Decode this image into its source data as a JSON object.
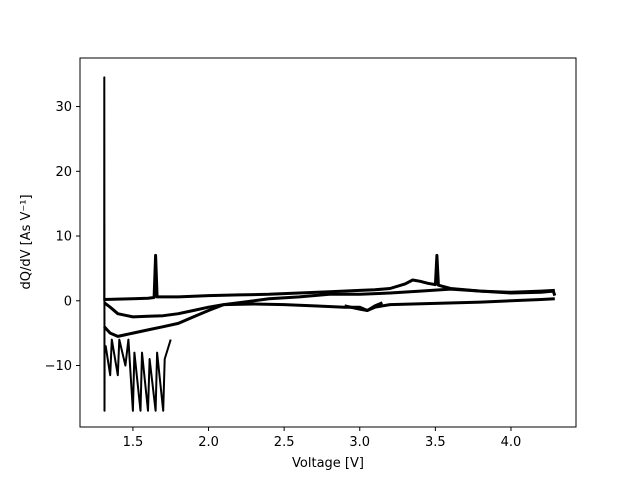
{
  "chart_data": {
    "type": "line",
    "title": "",
    "xlabel": "Voltage [V]",
    "ylabel": "dQ/dV [As V⁻¹]",
    "xlim": [
      1.15,
      4.43
    ],
    "ylim": [
      -19.5,
      37.5
    ],
    "xticks": [
      1.5,
      2.0,
      2.5,
      3.0,
      3.5,
      4.0
    ],
    "xtick_labels": [
      "1.5",
      "2.0",
      "2.5",
      "3.0",
      "3.5",
      "4.0"
    ],
    "yticks": [
      -10,
      0,
      10,
      20,
      30
    ],
    "ytick_labels": [
      "−10",
      "0",
      "10",
      "20",
      "30"
    ],
    "grid": false,
    "legend": "none",
    "color": "#000000",
    "series": [
      {
        "values": [
          [
            1.31,
            0.2
          ],
          [
            1.4,
            0.25
          ],
          [
            1.5,
            0.3
          ],
          [
            1.6,
            0.4
          ],
          [
            1.64,
            0.5
          ],
          [
            1.65,
            7.0
          ],
          [
            1.66,
            0.6
          ],
          [
            1.8,
            0.6
          ],
          [
            2.0,
            0.8
          ],
          [
            2.2,
            0.9
          ],
          [
            2.4,
            1.0
          ],
          [
            2.6,
            1.2
          ],
          [
            2.8,
            1.4
          ],
          [
            3.0,
            1.6
          ],
          [
            3.1,
            1.7
          ],
          [
            3.2,
            1.9
          ],
          [
            3.3,
            2.6
          ],
          [
            3.35,
            3.2
          ],
          [
            3.4,
            3.0
          ],
          [
            3.45,
            2.7
          ],
          [
            3.5,
            2.5
          ],
          [
            3.51,
            7.0
          ],
          [
            3.52,
            2.4
          ],
          [
            3.6,
            1.9
          ],
          [
            3.8,
            1.5
          ],
          [
            4.0,
            1.2
          ],
          [
            4.2,
            1.3
          ],
          [
            4.28,
            1.5
          ],
          [
            4.29,
            0.8
          ]
        ]
      },
      {
        "values": [
          [
            1.31,
            -0.3
          ],
          [
            1.35,
            -1.0
          ],
          [
            1.4,
            -2.0
          ],
          [
            1.5,
            -2.5
          ],
          [
            1.6,
            -2.4
          ],
          [
            1.7,
            -2.3
          ],
          [
            1.8,
            -2.0
          ],
          [
            1.9,
            -1.5
          ],
          [
            2.0,
            -1.0
          ],
          [
            2.1,
            -0.6
          ],
          [
            2.3,
            -0.5
          ],
          [
            2.5,
            -0.6
          ],
          [
            2.7,
            -0.8
          ],
          [
            2.9,
            -1.0
          ],
          [
            3.0,
            -1.0
          ],
          [
            3.05,
            -1.5
          ],
          [
            3.1,
            -1.0
          ],
          [
            3.2,
            -0.6
          ],
          [
            3.5,
            -0.4
          ],
          [
            3.8,
            -0.2
          ],
          [
            4.0,
            0.0
          ],
          [
            4.2,
            0.2
          ],
          [
            4.29,
            0.3
          ]
        ]
      },
      {
        "values": [
          [
            1.31,
            -4.0
          ],
          [
            1.35,
            -5.0
          ],
          [
            1.4,
            -5.5
          ],
          [
            1.5,
            -5.0
          ],
          [
            1.6,
            -4.5
          ],
          [
            1.7,
            -4.0
          ],
          [
            1.8,
            -3.5
          ],
          [
            1.9,
            -2.5
          ],
          [
            2.0,
            -1.5
          ],
          [
            2.1,
            -0.6
          ],
          [
            2.2,
            -0.3
          ],
          [
            2.4,
            0.3
          ],
          [
            2.6,
            0.6
          ],
          [
            2.8,
            1.0
          ],
          [
            3.0,
            1.0
          ],
          [
            3.2,
            1.2
          ],
          [
            3.4,
            1.5
          ],
          [
            3.6,
            1.8
          ],
          [
            3.8,
            1.5
          ],
          [
            4.0,
            1.3
          ],
          [
            4.2,
            1.5
          ],
          [
            4.29,
            1.6
          ]
        ]
      },
      {
        "values": [
          [
            1.31,
            0.0
          ],
          [
            1.311,
            34.5
          ],
          [
            1.312,
            -17.0
          ],
          [
            1.313,
            -8.0
          ],
          [
            1.32,
            -7.0
          ],
          [
            1.35,
            -11.5
          ],
          [
            1.36,
            -6.0
          ],
          [
            1.4,
            -11.5
          ],
          [
            1.41,
            -6.0
          ],
          [
            1.45,
            -10.0
          ],
          [
            1.47,
            -6.0
          ],
          [
            1.5,
            -17.0
          ],
          [
            1.51,
            -8.0
          ],
          [
            1.55,
            -17.0
          ],
          [
            1.56,
            -8.0
          ],
          [
            1.6,
            -17.0
          ],
          [
            1.61,
            -9.0
          ],
          [
            1.65,
            -17.0
          ],
          [
            1.66,
            -8.0
          ],
          [
            1.7,
            -17.0
          ],
          [
            1.71,
            -9.0
          ],
          [
            1.75,
            -6.0
          ]
        ]
      },
      {
        "values": [
          [
            2.9,
            -0.8
          ],
          [
            3.0,
            -1.3
          ],
          [
            3.05,
            -1.5
          ],
          [
            3.1,
            -0.8
          ],
          [
            3.15,
            -0.3
          ]
        ]
      }
    ]
  }
}
